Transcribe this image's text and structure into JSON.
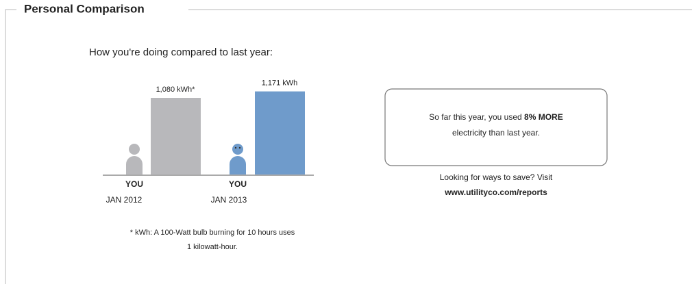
{
  "section_title": "Personal Comparison",
  "subtitle": "How you're doing compared to last year:",
  "chart_data": {
    "type": "bar",
    "categories": [
      "JAN 2012",
      "JAN 2013"
    ],
    "person_labels": [
      "YOU",
      "YOU"
    ],
    "values": [
      1080,
      1171
    ],
    "value_labels": [
      "1,080 kWh*",
      "1,171 kWh"
    ],
    "colors": [
      "#b8b8bb",
      "#6f9bcb"
    ]
  },
  "footnote": [
    "* kWh: A 100-Watt bulb burning for 10 hours uses",
    "1 kilowatt-hour."
  ],
  "message": {
    "line1": "So far this year, you used",
    "bold": "8% MORE",
    "line2": "electricity than last year."
  },
  "tip": {
    "text": "Looking for ways to save? Visit",
    "link": "www.utilityco.com/reports"
  }
}
